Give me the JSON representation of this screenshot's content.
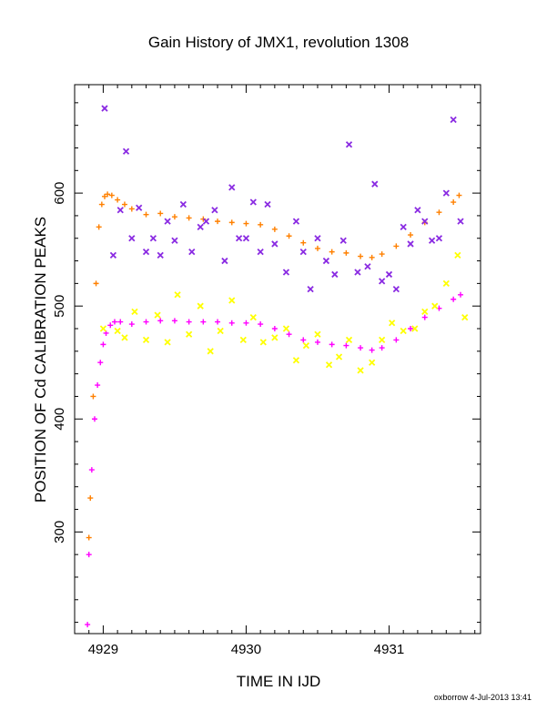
{
  "chart_data": {
    "type": "scatter",
    "title": "Gain History of JMX1, revolution 1308",
    "xlabel": "TIME IN IJD",
    "ylabel": "POSITION OF Cd CALIBRATION PEAKS",
    "xlim": [
      4928.8,
      4931.64
    ],
    "ylim": [
      210,
      696
    ],
    "xticks": [
      4929,
      4930,
      4931
    ],
    "yticks": [
      300,
      400,
      500,
      600
    ],
    "xtick_labels": [
      "4929",
      "4930",
      "4931"
    ],
    "ytick_labels": [
      "300",
      "400",
      "500",
      "600"
    ],
    "grid": false,
    "footer": "oxborrow  4-Jul-2013 13:41",
    "series": [
      {
        "marker": "+",
        "color": "#ff8000",
        "x": [
          4928.9,
          4928.91,
          4928.93,
          4928.95,
          4928.97,
          4928.99,
          4929.01,
          4929.03,
          4929.06,
          4929.1,
          4929.15,
          4929.2,
          4929.3,
          4929.4,
          4929.5,
          4929.6,
          4929.7,
          4929.8,
          4929.9,
          4930.0,
          4930.1,
          4930.2,
          4930.3,
          4930.4,
          4930.5,
          4930.6,
          4930.7,
          4930.8,
          4930.88,
          4930.95,
          4931.05,
          4931.15,
          4931.25,
          4931.35,
          4931.45,
          4931.49
        ],
        "y": [
          295,
          330,
          420,
          520,
          570,
          590,
          597,
          599,
          598,
          594,
          590,
          586,
          581,
          582,
          579,
          578,
          577,
          575,
          574,
          573,
          572,
          568,
          562,
          556,
          551,
          548,
          547,
          544,
          543,
          546,
          553,
          563,
          574,
          583,
          592,
          598
        ]
      },
      {
        "marker": "+",
        "color": "#ff00ff",
        "x": [
          4928.89,
          4928.9,
          4928.92,
          4928.94,
          4928.96,
          4928.98,
          4929.0,
          4929.02,
          4929.05,
          4929.08,
          4929.12,
          4929.2,
          4929.3,
          4929.4,
          4929.5,
          4929.6,
          4929.7,
          4929.8,
          4929.9,
          4930.0,
          4930.1,
          4930.2,
          4930.3,
          4930.4,
          4930.5,
          4930.6,
          4930.7,
          4930.8,
          4930.88,
          4930.95,
          4931.05,
          4931.15,
          4931.25,
          4931.35,
          4931.45,
          4931.5
        ],
        "y": [
          218,
          280,
          355,
          400,
          430,
          450,
          466,
          476,
          483,
          486,
          486,
          484,
          486,
          487,
          487,
          486,
          486,
          486,
          485,
          485,
          484,
          480,
          475,
          470,
          468,
          466,
          465,
          463,
          461,
          463,
          470,
          480,
          490,
          498,
          506,
          510
        ]
      },
      {
        "marker": "x",
        "color": "#8a2be2",
        "x": [
          4929.01,
          4929.07,
          4929.12,
          4929.16,
          4929.2,
          4929.25,
          4929.3,
          4929.35,
          4929.4,
          4929.45,
          4929.5,
          4929.56,
          4929.62,
          4929.68,
          4929.72,
          4929.78,
          4929.85,
          4929.9,
          4929.95,
          4930.0,
          4930.05,
          4930.1,
          4930.15,
          4930.2,
          4930.28,
          4930.35,
          4930.4,
          4930.45,
          4930.5,
          4930.56,
          4930.62,
          4930.68,
          4930.72,
          4930.78,
          4930.85,
          4930.9,
          4930.95,
          4931.0,
          4931.05,
          4931.1,
          4931.15,
          4931.2,
          4931.25,
          4931.3,
          4931.35,
          4931.4,
          4931.45,
          4931.5
        ],
        "y": [
          675,
          545,
          585,
          637,
          560,
          587,
          548,
          560,
          545,
          575,
          558,
          590,
          548,
          570,
          575,
          585,
          540,
          605,
          560,
          560,
          592,
          548,
          590,
          555,
          530,
          575,
          548,
          515,
          560,
          540,
          528,
          558,
          643,
          530,
          535,
          608,
          522,
          528,
          515,
          570,
          555,
          585,
          575,
          558,
          560,
          600,
          665,
          575
        ]
      },
      {
        "marker": "x",
        "color": "#ffff00",
        "x": [
          4929.0,
          4929.1,
          4929.15,
          4929.22,
          4929.3,
          4929.38,
          4929.45,
          4929.52,
          4929.6,
          4929.68,
          4929.75,
          4929.82,
          4929.9,
          4929.98,
          4930.05,
          4930.12,
          4930.2,
          4930.28,
          4930.35,
          4930.42,
          4930.5,
          4930.58,
          4930.65,
          4930.72,
          4930.8,
          4930.88,
          4930.95,
          4931.02,
          4931.1,
          4931.18,
          4931.25,
          4931.32,
          4931.4,
          4931.48,
          4931.53
        ],
        "y": [
          480,
          478,
          472,
          495,
          470,
          492,
          468,
          510,
          475,
          500,
          460,
          478,
          505,
          470,
          490,
          468,
          472,
          480,
          452,
          465,
          475,
          448,
          455,
          470,
          443,
          450,
          470,
          485,
          478,
          480,
          495,
          500,
          520,
          545,
          490
        ]
      }
    ]
  }
}
